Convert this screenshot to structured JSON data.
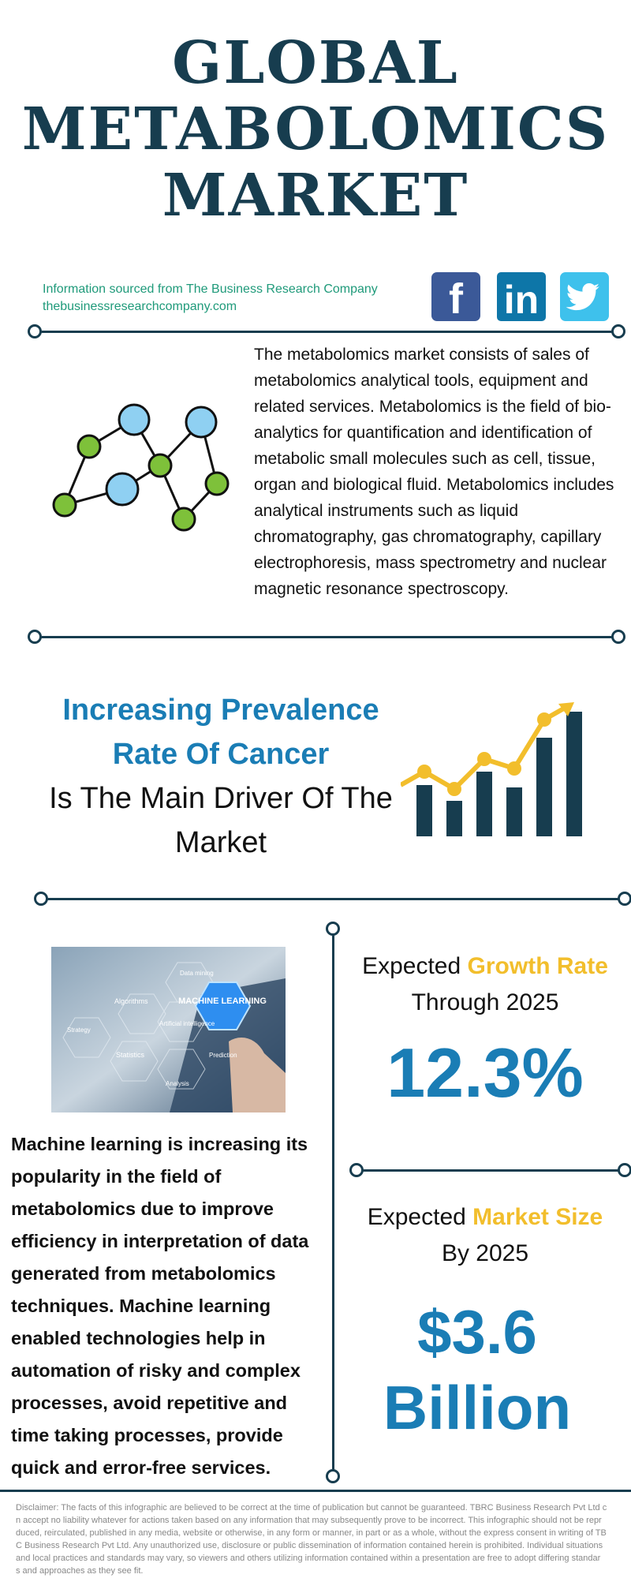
{
  "header": {
    "title_lines": [
      "GLOBAL",
      "METABOLOMICS",
      "MARKET"
    ]
  },
  "source": {
    "line1": "Information sourced from The Business Research Company",
    "line2": "thebusinessresearchcompany.com"
  },
  "social": {
    "facebook_letter": "f",
    "linkedin_letters": "in",
    "colors": {
      "facebook": "#3b5998",
      "linkedin": "#0e76a8",
      "twitter": "#3ec1ec"
    }
  },
  "intro": {
    "text": "The metabolomics market consists of sales of metabolomics analytical tools, equipment and related services. Metabolomics is the field of bio-analytics for quantification and identification of metabolic small molecules such as cell, tissue, organ and biological fluid. Metabolomics includes analytical instruments such as liquid chromatography, gas chromatography, capillary electrophoresis, mass spectrometry and nuclear magnetic resonance spectroscopy."
  },
  "driver": {
    "highlight_line1": "Increasing Prevalence",
    "highlight_line2": "Rate Of Cancer",
    "rest": "Is The Main Driver Of The Market"
  },
  "photo": {
    "labels": {
      "data_mining": "Data mining",
      "algorithms": "Algorithms",
      "machine_learning": "MACHINE LEARNING",
      "strategy": "Strategy",
      "ai": "Artificial intelligence",
      "statistics": "Statistics",
      "prediction": "Prediction",
      "analysis": "Analysis"
    }
  },
  "ml": {
    "text": "Machine learning is increasing its popularity in the field of metabolomics due to improve efficiency in interpretation of data generated from metabolomics techniques. Machine learning enabled technologies help in automation of risky and complex processes, avoid repetitive and time taking processes, provide quick and error-free services."
  },
  "growth": {
    "prefix": "Expected",
    "accent": "Growth Rate",
    "suffix": "Through 2025",
    "value": "12.3%"
  },
  "market_size": {
    "prefix": "Expected",
    "accent": "Market Size",
    "suffix": "By 2025",
    "value_line1": "$3.6",
    "value_line2": "Billion"
  },
  "disclaimer": {
    "lines": [
      "Disclaimer: The facts of this infographic are believed to be correct at the time of publication but cannot be guaranteed. TBRC Business Research Pvt Ltd c",
      "n accept no liability whatever for actions taken based on any information that may subsequently prove to be incorrect. This infographic should not be repr",
      "duced, reirculated, published in any media, website or otherwise, in any form or manner, in part or as a whole, without the express consent in writing of TB",
      "C Business Research Pvt Ltd. Any unauthorized use, disclosure or public dissemination of information contained herein is prohibited. Individual situations",
      "and local practices and standards may vary, so viewers and others utilizing information contained within a presentation are free to adopt differing standar",
      "s and approaches as they see fit."
    ]
  },
  "colors": {
    "navy": "#173d4f",
    "accent_blue": "#1a7db5",
    "accent_yellow": "#f2be2c",
    "source_green": "#1f9a7a"
  }
}
